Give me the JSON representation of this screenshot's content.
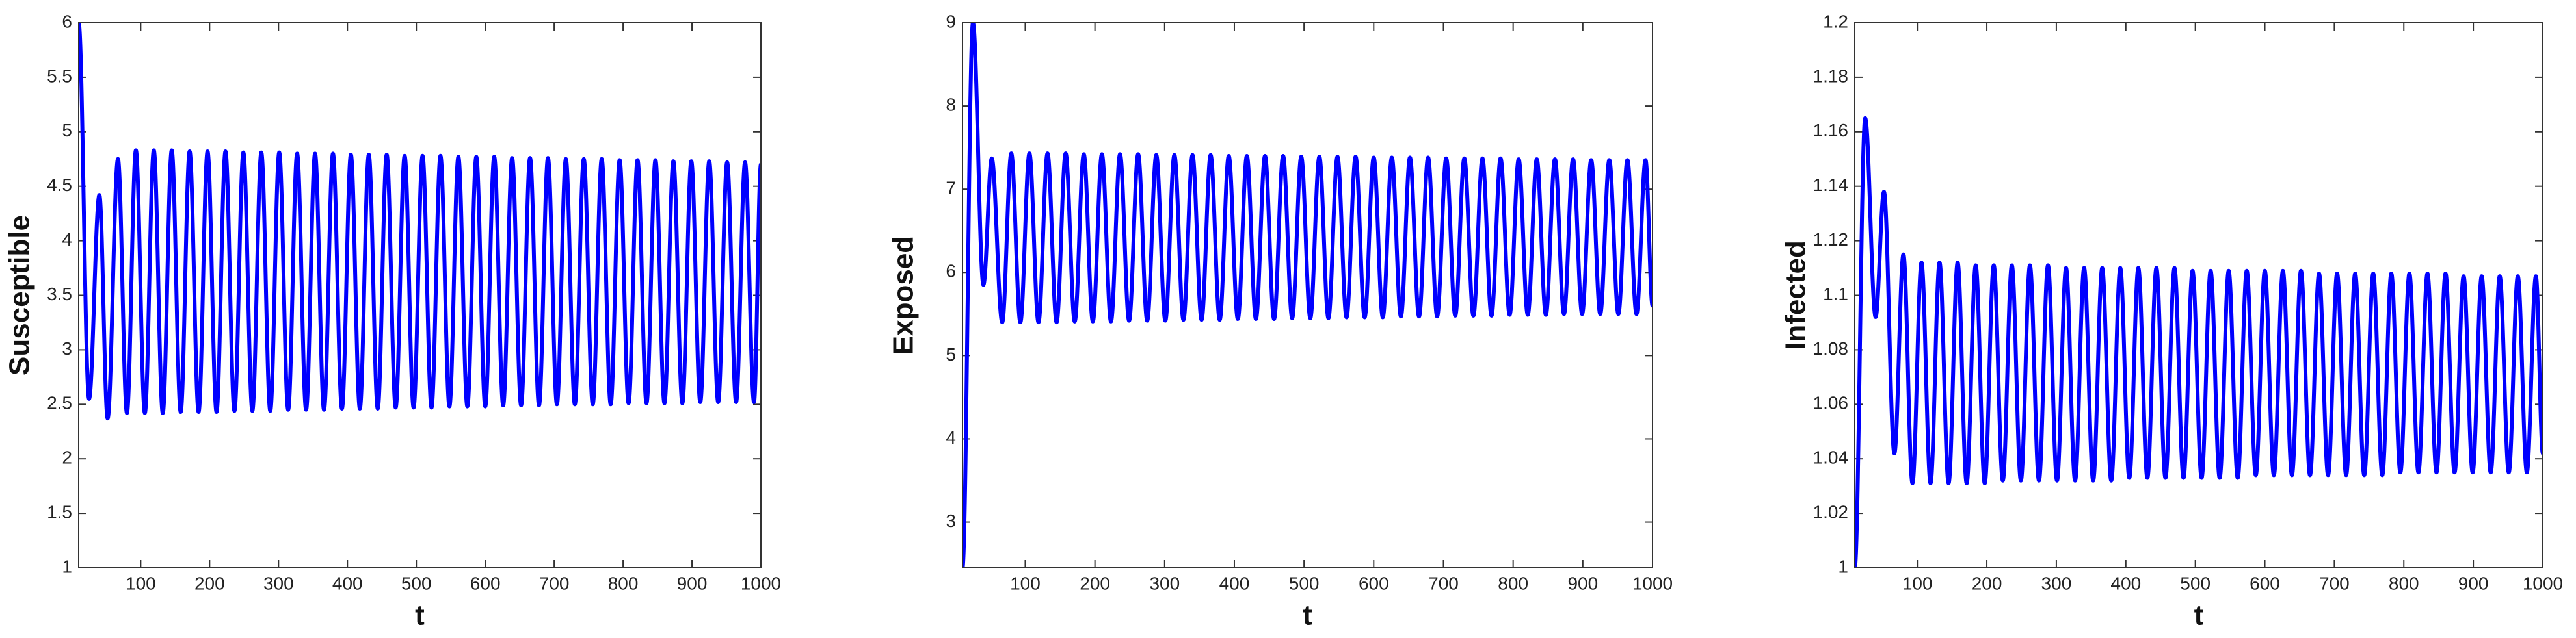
{
  "chart_data": [
    {
      "type": "line",
      "ylabel": "Susceptible",
      "xlabel": "t",
      "xlim": [
        10,
        1000
      ],
      "ylim": [
        1,
        6
      ],
      "xticks": [
        100,
        200,
        300,
        400,
        500,
        600,
        700,
        800,
        900,
        1000
      ],
      "yticks": [
        1,
        1.5,
        2,
        2.5,
        3,
        3.5,
        4,
        4.5,
        5,
        5.5,
        6
      ],
      "x": [
        10,
        25,
        40,
        52,
        67,
        80,
        93,
        106,
        119,
        132,
        145,
        158,
        171,
        184,
        197,
        210,
        223,
        236,
        249,
        262,
        275,
        288,
        301,
        314,
        327,
        340,
        353,
        366,
        379,
        392,
        405,
        418,
        431,
        444,
        457,
        470,
        483,
        496,
        509,
        522,
        535,
        548,
        561,
        574,
        587,
        600,
        613,
        626,
        639,
        652,
        665,
        678,
        691,
        704,
        717,
        730,
        743,
        756,
        769,
        782,
        795,
        808,
        821,
        834,
        847,
        860,
        873,
        886,
        899,
        912,
        925,
        938,
        951,
        964,
        977,
        990,
        1000
      ],
      "series": [
        {
          "color": "#0000ff",
          "values": [
            6,
            2.55,
            4.42,
            2.37,
            4.75,
            2.42,
            4.83,
            2.42,
            4.83,
            2.42,
            4.83,
            2.43,
            4.82,
            2.43,
            4.82,
            2.43,
            4.82,
            2.44,
            4.81,
            2.44,
            4.81,
            2.44,
            4.81,
            2.45,
            4.8,
            2.45,
            4.8,
            2.45,
            4.8,
            2.46,
            4.79,
            2.46,
            4.79,
            2.46,
            4.79,
            2.47,
            4.78,
            2.47,
            4.78,
            2.47,
            4.78,
            2.48,
            4.77,
            2.48,
            4.77,
            2.48,
            4.77,
            2.49,
            4.76,
            2.49,
            4.76,
            2.49,
            4.76,
            2.5,
            4.75,
            2.5,
            4.75,
            2.5,
            4.75,
            2.5,
            4.74,
            2.51,
            4.74,
            2.51,
            4.74,
            2.51,
            4.73,
            2.51,
            4.73,
            2.52,
            4.73,
            2.52,
            4.72,
            2.52,
            4.72,
            2.52,
            4.7
          ]
        }
      ]
    },
    {
      "type": "line",
      "ylabel": "Exposed",
      "xlabel": "t",
      "xlim": [
        10,
        1000
      ],
      "ylim": [
        2.45,
        9
      ],
      "xticks": [
        100,
        200,
        300,
        400,
        500,
        600,
        700,
        800,
        900,
        1000
      ],
      "yticks": [
        3,
        4,
        5,
        6,
        7,
        8,
        9
      ],
      "x": [
        10,
        25,
        40,
        52,
        67,
        80,
        93,
        106,
        119,
        132,
        145,
        158,
        171,
        184,
        197,
        210,
        223,
        236,
        249,
        262,
        275,
        288,
        301,
        314,
        327,
        340,
        353,
        366,
        379,
        392,
        405,
        418,
        431,
        444,
        457,
        470,
        483,
        496,
        509,
        522,
        535,
        548,
        561,
        574,
        587,
        600,
        613,
        626,
        639,
        652,
        665,
        678,
        691,
        704,
        717,
        730,
        743,
        756,
        769,
        782,
        795,
        808,
        821,
        834,
        847,
        860,
        873,
        886,
        899,
        912,
        925,
        938,
        951,
        964,
        977,
        990,
        1000
      ],
      "series": [
        {
          "color": "#0000ff",
          "values": [
            2.45,
            9.0,
            5.85,
            7.37,
            5.4,
            7.43,
            5.4,
            7.43,
            5.4,
            7.43,
            5.4,
            7.43,
            5.41,
            7.42,
            5.41,
            7.42,
            5.41,
            7.42,
            5.42,
            7.42,
            5.42,
            7.41,
            5.42,
            7.41,
            5.43,
            7.41,
            5.43,
            7.41,
            5.43,
            7.4,
            5.44,
            7.4,
            5.44,
            7.4,
            5.44,
            7.4,
            5.45,
            7.39,
            5.45,
            7.39,
            5.45,
            7.39,
            5.46,
            7.39,
            5.46,
            7.38,
            5.46,
            7.38,
            5.47,
            7.38,
            5.47,
            7.38,
            5.47,
            7.37,
            5.48,
            7.37,
            5.48,
            7.37,
            5.48,
            7.37,
            5.49,
            7.36,
            5.49,
            7.36,
            5.49,
            7.36,
            5.5,
            7.36,
            5.5,
            7.35,
            5.5,
            7.35,
            5.5,
            7.35,
            5.5,
            7.35,
            5.6
          ]
        }
      ]
    },
    {
      "type": "line",
      "ylabel": "Infected",
      "xlabel": "t",
      "xlim": [
        10,
        1000
      ],
      "ylim": [
        1,
        1.2
      ],
      "xticks": [
        100,
        200,
        300,
        400,
        500,
        600,
        700,
        800,
        900,
        1000
      ],
      "yticks": [
        1,
        1.02,
        1.04,
        1.06,
        1.08,
        1.1,
        1.12,
        1.14,
        1.16,
        1.18,
        1.2
      ],
      "x": [
        10,
        25,
        40,
        52,
        67,
        80,
        93,
        106,
        119,
        132,
        145,
        158,
        171,
        184,
        197,
        210,
        223,
        236,
        249,
        262,
        275,
        288,
        301,
        314,
        327,
        340,
        353,
        366,
        379,
        392,
        405,
        418,
        431,
        444,
        457,
        470,
        483,
        496,
        509,
        522,
        535,
        548,
        561,
        574,
        587,
        600,
        613,
        626,
        639,
        652,
        665,
        678,
        691,
        704,
        717,
        730,
        743,
        756,
        769,
        782,
        795,
        808,
        821,
        834,
        847,
        860,
        873,
        886,
        899,
        912,
        925,
        938,
        951,
        964,
        977,
        990,
        1000
      ],
      "series": [
        {
          "color": "#0000ff",
          "values": [
            1.0,
            1.165,
            1.092,
            1.138,
            1.042,
            1.115,
            1.031,
            1.112,
            1.031,
            1.112,
            1.031,
            1.112,
            1.031,
            1.111,
            1.031,
            1.111,
            1.032,
            1.111,
            1.032,
            1.111,
            1.032,
            1.111,
            1.032,
            1.11,
            1.032,
            1.11,
            1.032,
            1.11,
            1.032,
            1.11,
            1.033,
            1.11,
            1.033,
            1.11,
            1.033,
            1.11,
            1.033,
            1.109,
            1.033,
            1.109,
            1.033,
            1.109,
            1.033,
            1.109,
            1.034,
            1.109,
            1.034,
            1.109,
            1.034,
            1.109,
            1.034,
            1.108,
            1.034,
            1.108,
            1.034,
            1.108,
            1.034,
            1.108,
            1.034,
            1.108,
            1.035,
            1.108,
            1.035,
            1.108,
            1.035,
            1.108,
            1.035,
            1.107,
            1.035,
            1.107,
            1.035,
            1.107,
            1.035,
            1.107,
            1.035,
            1.107,
            1.042
          ]
        }
      ]
    }
  ]
}
